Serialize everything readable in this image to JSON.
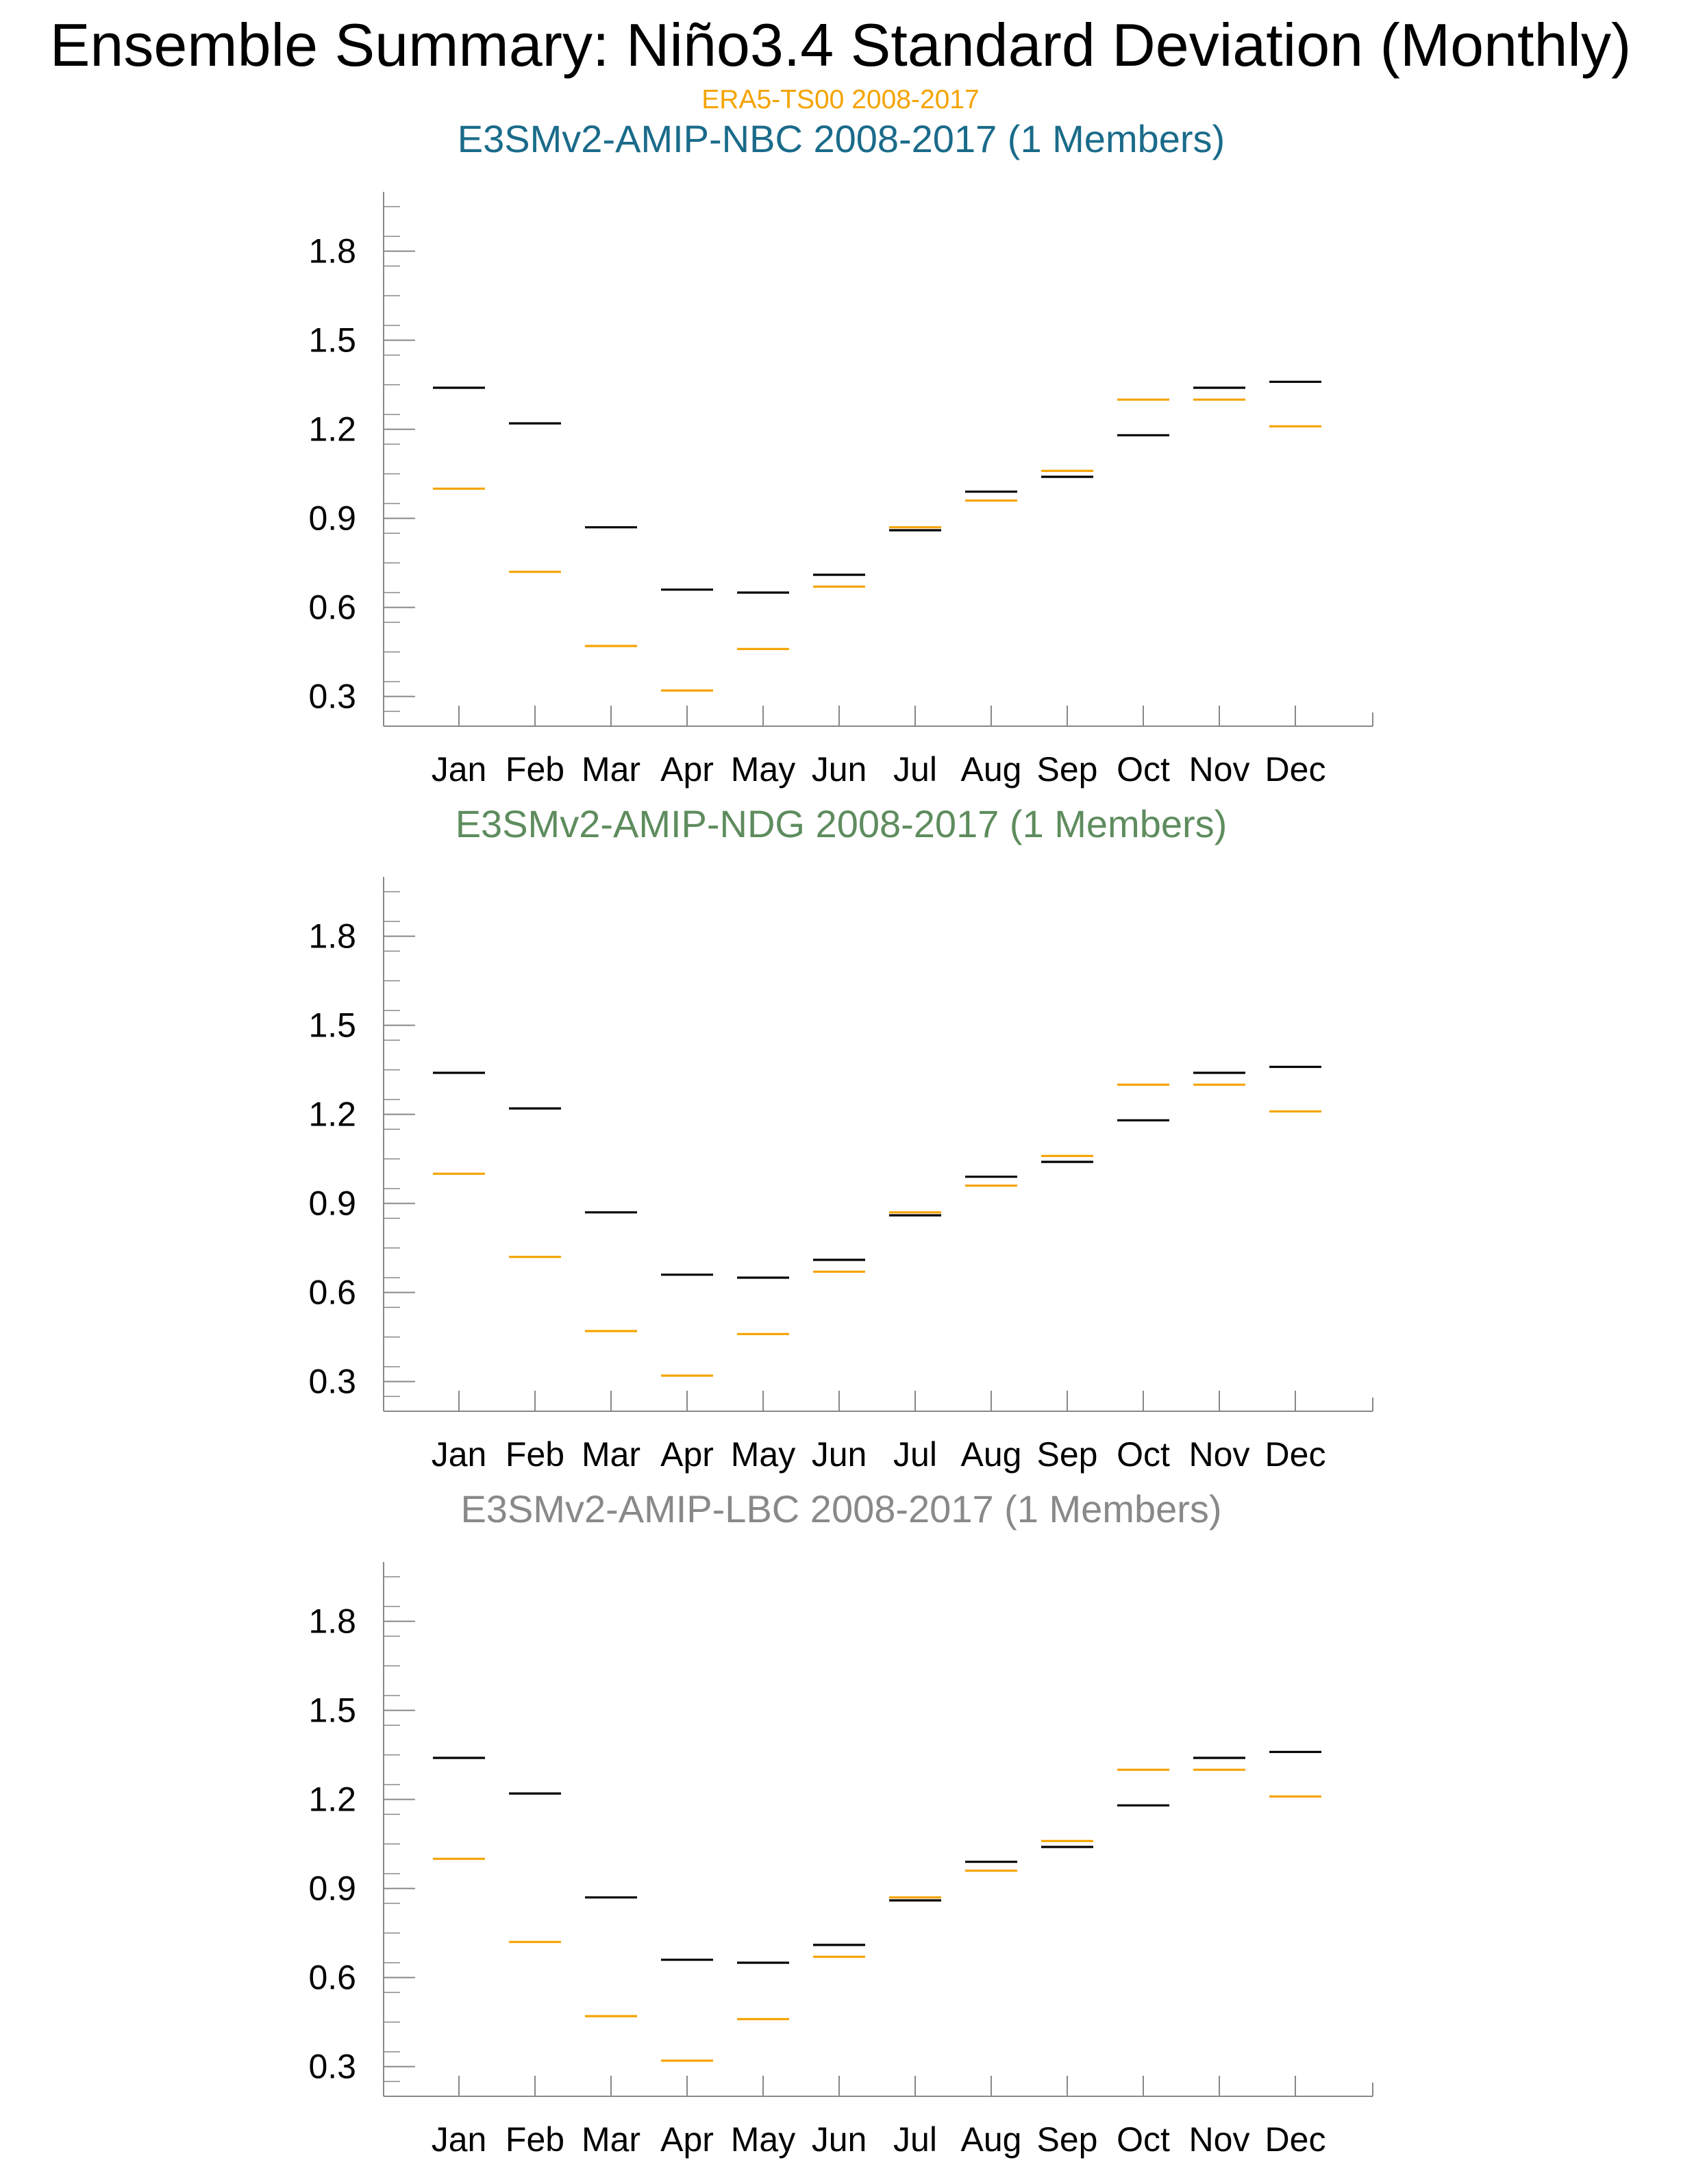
{
  "title": "Ensemble Summary: Niño3.4 Standard Deviation (Monthly)",
  "subtitle": "ERA5-TS00 2008-2017",
  "colors": {
    "observation": "#f5a300",
    "model": "#000000",
    "axis": "#888888",
    "panel_titles": [
      "#1a6b8a",
      "#5e8c5e",
      "#8a8888"
    ]
  },
  "chart_data": [
    {
      "type": "scatter",
      "marker": "horizontal-dash",
      "title": "E3SMv2-AMIP-NBC 2008-2017 (1 Members)",
      "categories": [
        "Jan",
        "Feb",
        "Mar",
        "Apr",
        "May",
        "Jun",
        "Jul",
        "Aug",
        "Sep",
        "Oct",
        "Nov",
        "Dec"
      ],
      "series": [
        {
          "values": [
            1.34,
            1.22,
            0.87,
            0.66,
            0.65,
            0.71,
            0.86,
            0.99,
            1.04,
            1.18,
            1.34,
            1.36
          ]
        },
        {
          "values": [
            1.0,
            0.72,
            0.47,
            0.32,
            0.46,
            0.67,
            0.87,
            0.96,
            1.06,
            1.3,
            1.3,
            1.21
          ]
        }
      ],
      "yticks": [
        "0.3",
        "0.6",
        "0.9",
        "1.2",
        "1.5",
        "1.8"
      ],
      "ylim": [
        0.2,
        2.0
      ],
      "grid": false
    },
    {
      "type": "scatter",
      "marker": "horizontal-dash",
      "title": "E3SMv2-AMIP-NDG 2008-2017 (1 Members)",
      "categories": [
        "Jan",
        "Feb",
        "Mar",
        "Apr",
        "May",
        "Jun",
        "Jul",
        "Aug",
        "Sep",
        "Oct",
        "Nov",
        "Dec"
      ],
      "series": [
        {
          "values": [
            1.34,
            1.22,
            0.87,
            0.66,
            0.65,
            0.71,
            0.86,
            0.99,
            1.04,
            1.18,
            1.34,
            1.36
          ]
        },
        {
          "values": [
            1.0,
            0.72,
            0.47,
            0.32,
            0.46,
            0.67,
            0.87,
            0.96,
            1.06,
            1.3,
            1.3,
            1.21
          ]
        }
      ],
      "yticks": [
        "0.3",
        "0.6",
        "0.9",
        "1.2",
        "1.5",
        "1.8"
      ],
      "ylim": [
        0.2,
        2.0
      ],
      "grid": false
    },
    {
      "type": "scatter",
      "marker": "horizontal-dash",
      "title": "E3SMv2-AMIP-LBC 2008-2017 (1 Members)",
      "categories": [
        "Jan",
        "Feb",
        "Mar",
        "Apr",
        "May",
        "Jun",
        "Jul",
        "Aug",
        "Sep",
        "Oct",
        "Nov",
        "Dec"
      ],
      "series": [
        {
          "values": [
            1.34,
            1.22,
            0.87,
            0.66,
            0.65,
            0.71,
            0.86,
            0.99,
            1.04,
            1.18,
            1.34,
            1.36
          ]
        },
        {
          "values": [
            1.0,
            0.72,
            0.47,
            0.32,
            0.46,
            0.67,
            0.87,
            0.96,
            1.06,
            1.3,
            1.3,
            1.21
          ]
        }
      ],
      "yticks": [
        "0.3",
        "0.6",
        "0.9",
        "1.2",
        "1.5",
        "1.8"
      ],
      "ylim": [
        0.2,
        2.0
      ],
      "grid": false
    }
  ]
}
